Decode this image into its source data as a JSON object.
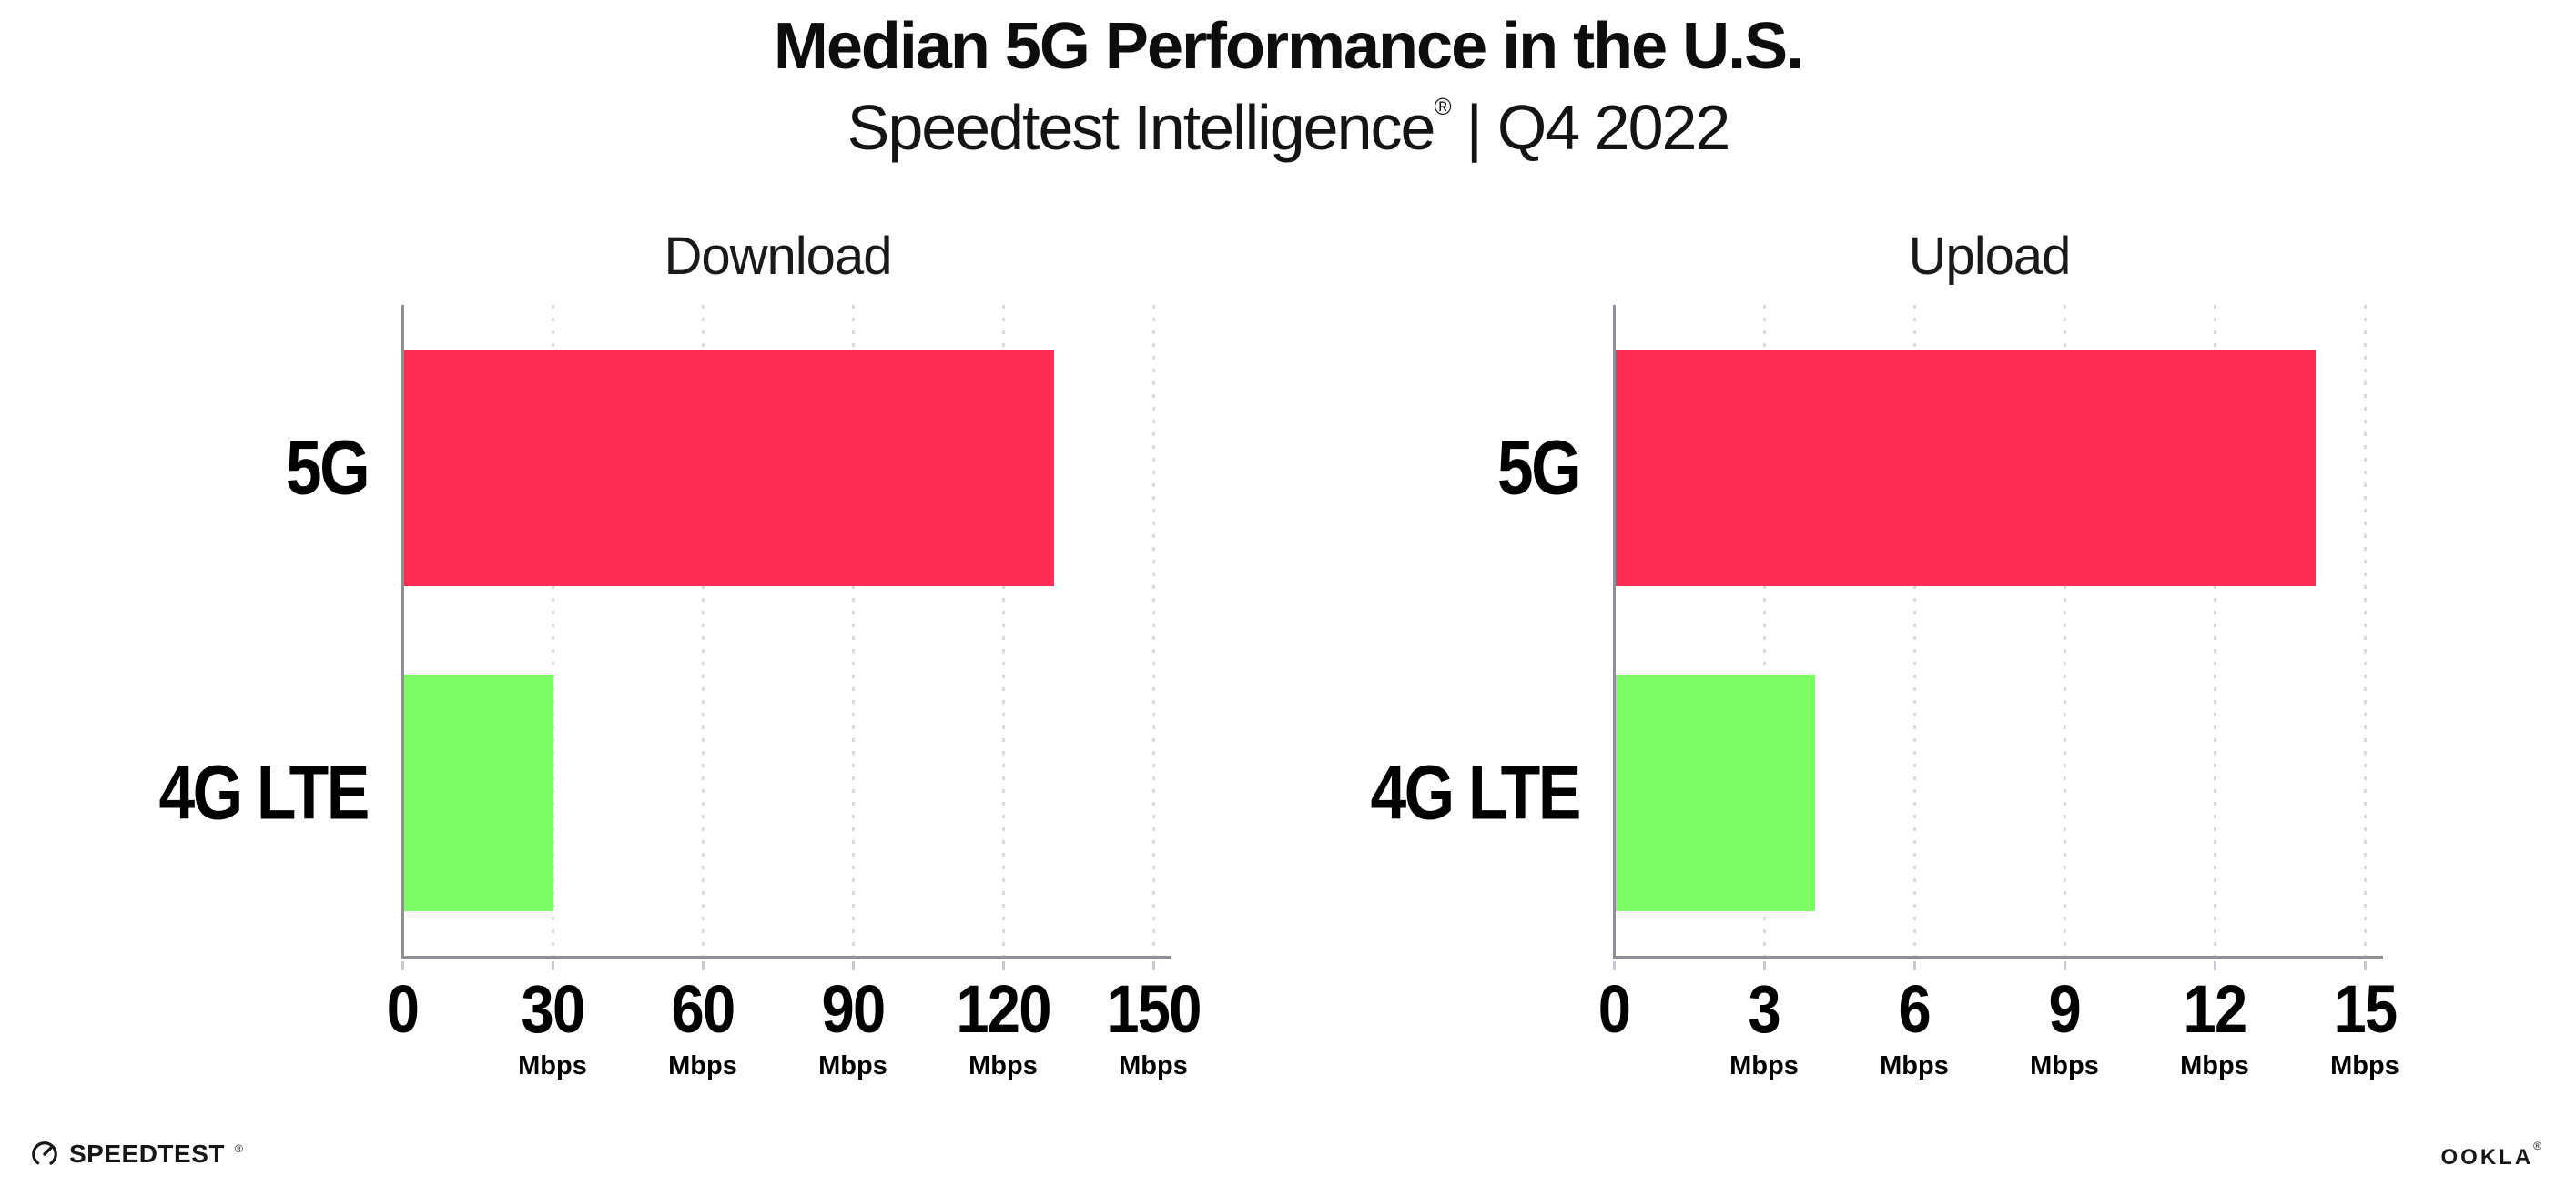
{
  "title": "Median 5G Performance in the U.S.",
  "subtitle": {
    "product": "Speedtest Intelligence",
    "trademark": "®",
    "divider": "|",
    "period": "Q4 2022"
  },
  "colors": {
    "bar_5g": "#fd2d55",
    "bar_4g_lte": "#7dfc66",
    "axis": "#8f8f97",
    "gridline": "#d9d9e2",
    "tickmark": "#c7c7d0",
    "text": "#0d0d0d",
    "background": "#ffffff"
  },
  "chart_data": [
    {
      "type": "bar",
      "orientation": "horizontal",
      "title": "Download",
      "categories": [
        "5G",
        "4G LTE"
      ],
      "values": [
        130,
        30
      ],
      "unit": "Mbps",
      "xlim": [
        0,
        150
      ],
      "xticks": [
        0,
        30,
        60,
        90,
        120,
        150
      ],
      "tick_unit_label": "Mbps",
      "grid": "vertical-dotted",
      "legend": "none",
      "bar_colors": [
        "#fd2d55",
        "#7dfc66"
      ]
    },
    {
      "type": "bar",
      "orientation": "horizontal",
      "title": "Upload",
      "categories": [
        "5G",
        "4G LTE"
      ],
      "values": [
        14,
        4
      ],
      "unit": "Mbps",
      "xlim": [
        0,
        15
      ],
      "xticks": [
        0,
        3,
        6,
        9,
        12,
        15
      ],
      "tick_unit_label": "Mbps",
      "grid": "vertical-dotted",
      "legend": "none",
      "bar_colors": [
        "#fd2d55",
        "#7dfc66"
      ]
    }
  ],
  "footer": {
    "speedtest_label": "SPEEDTEST",
    "speedtest_mark": "®",
    "ookla_label": "OOKLA",
    "ookla_mark": "®"
  }
}
